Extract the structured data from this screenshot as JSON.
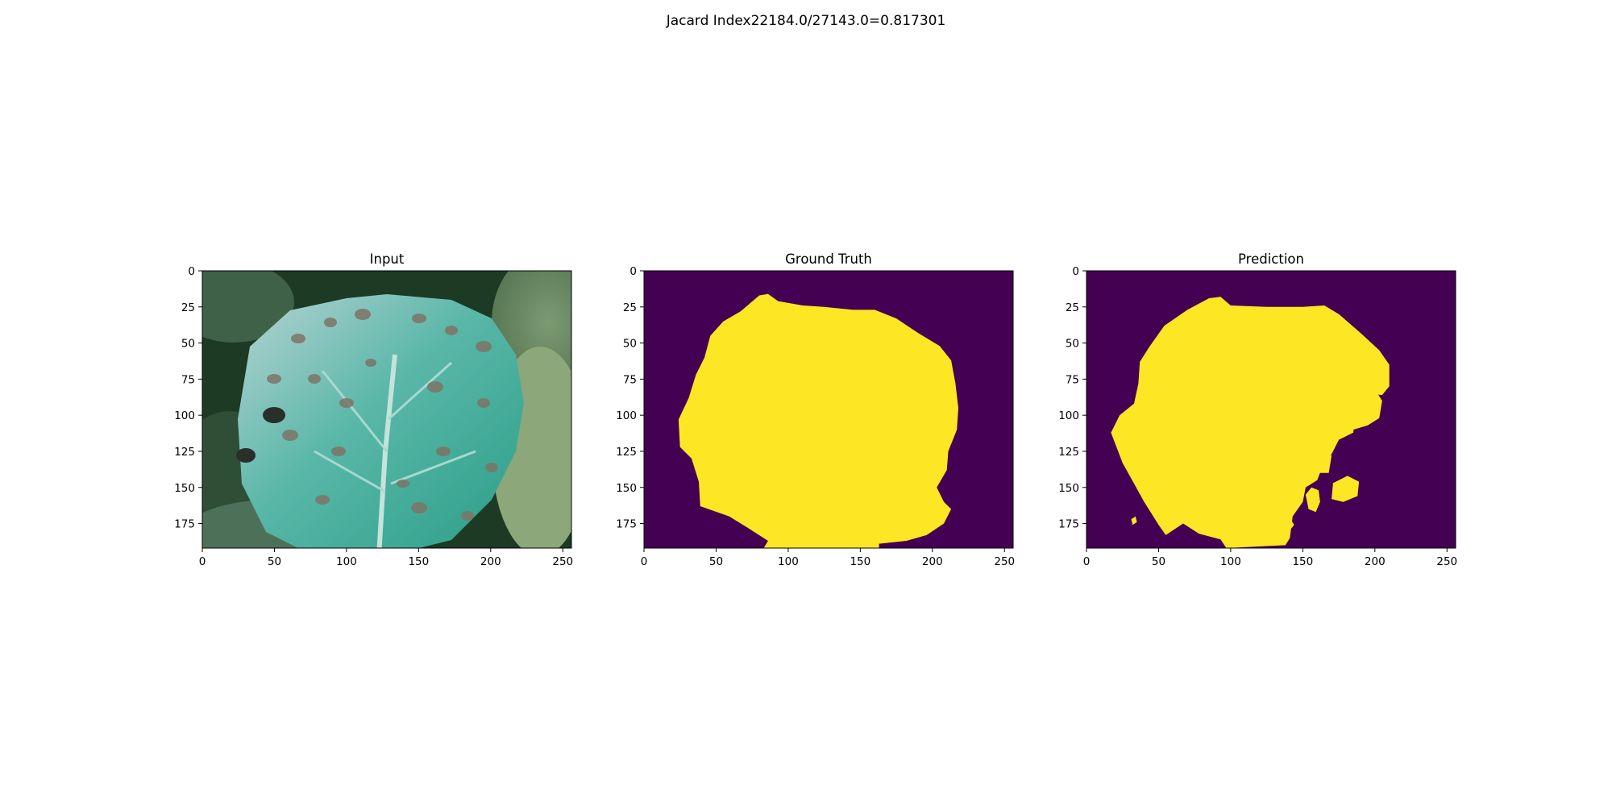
{
  "figure": {
    "title": "Jacard Index22184.0/27143.0=0.817301"
  },
  "colors": {
    "mask_background": "#440154",
    "mask_foreground": "#fde725",
    "axis": "#000000"
  },
  "chart_data": [
    {
      "type": "heatmap",
      "title": "Input",
      "content": "photo of a diseased cabbage leaf (pale blue-green leaf with brown spots on dark green foliage)",
      "xlim": [
        0,
        256
      ],
      "ylim": [
        192,
        0
      ],
      "x_ticks": [
        0,
        50,
        100,
        150,
        200,
        250
      ],
      "y_ticks": [
        0,
        25,
        50,
        75,
        100,
        125,
        150,
        175
      ]
    },
    {
      "type": "heatmap",
      "title": "Ground Truth",
      "content": "binary segmentation mask",
      "xlim": [
        0,
        256
      ],
      "ylim": [
        192,
        0
      ],
      "x_ticks": [
        0,
        50,
        100,
        150,
        200,
        250
      ],
      "y_ticks": [
        0,
        25,
        50,
        75,
        100,
        125,
        150,
        175
      ],
      "mask_outline": [
        [
          80,
          17
        ],
        [
          86,
          16
        ],
        [
          93,
          21
        ],
        [
          110,
          24
        ],
        [
          125,
          25
        ],
        [
          145,
          27
        ],
        [
          160,
          27
        ],
        [
          175,
          33
        ],
        [
          190,
          43
        ],
        [
          205,
          52
        ],
        [
          213,
          62
        ],
        [
          216,
          78
        ],
        [
          218,
          95
        ],
        [
          217,
          110
        ],
        [
          211,
          125
        ],
        [
          210,
          138
        ],
        [
          203,
          150
        ],
        [
          208,
          160
        ],
        [
          213,
          165
        ],
        [
          208,
          175
        ],
        [
          196,
          183
        ],
        [
          182,
          187
        ],
        [
          163,
          189
        ],
        [
          163,
          192
        ],
        [
          83,
          192
        ],
        [
          86,
          187
        ],
        [
          72,
          178
        ],
        [
          59,
          170
        ],
        [
          39,
          163
        ],
        [
          38,
          146
        ],
        [
          33,
          130
        ],
        [
          25,
          122
        ],
        [
          24,
          103
        ],
        [
          31,
          88
        ],
        [
          36,
          72
        ],
        [
          42,
          60
        ],
        [
          46,
          45
        ],
        [
          55,
          35
        ],
        [
          67,
          28
        ]
      ]
    },
    {
      "type": "heatmap",
      "title": "Prediction",
      "content": "binary segmentation mask",
      "xlim": [
        0,
        256
      ],
      "ylim": [
        192,
        0
      ],
      "x_ticks": [
        0,
        50,
        100,
        150,
        200,
        250
      ],
      "y_ticks": [
        0,
        25,
        50,
        75,
        100,
        125,
        150,
        175
      ],
      "mask_outline": [
        [
          85,
          19
        ],
        [
          93,
          18
        ],
        [
          100,
          24
        ],
        [
          125,
          25
        ],
        [
          150,
          25
        ],
        [
          165,
          24
        ],
        [
          175,
          30
        ],
        [
          190,
          43
        ],
        [
          203,
          55
        ],
        [
          210,
          65
        ],
        [
          210,
          80
        ],
        [
          205,
          86
        ],
        [
          195,
          85
        ],
        [
          190,
          91
        ],
        [
          186,
          102
        ],
        [
          185,
          112
        ],
        [
          175,
          117
        ],
        [
          170,
          127
        ],
        [
          165,
          132
        ],
        [
          160,
          145
        ],
        [
          152,
          150
        ],
        [
          150,
          160
        ],
        [
          143,
          170
        ],
        [
          141,
          185
        ],
        [
          138,
          190
        ],
        [
          97,
          192
        ],
        [
          93,
          186
        ],
        [
          78,
          182
        ],
        [
          67,
          175
        ],
        [
          55,
          183
        ],
        [
          50,
          176
        ],
        [
          40,
          160
        ],
        [
          25,
          133
        ],
        [
          17,
          112
        ],
        [
          23,
          100
        ],
        [
          33,
          92
        ],
        [
          36,
          78
        ],
        [
          37,
          63
        ],
        [
          44,
          52
        ],
        [
          54,
          38
        ],
        [
          70,
          27
        ]
      ],
      "mask_blobs": [
        [
          [
            175,
            85
          ],
          [
            188,
            80
          ],
          [
            200,
            82
          ],
          [
            205,
            90
          ],
          [
            203,
            102
          ],
          [
            195,
            107
          ],
          [
            185,
            110
          ],
          [
            172,
            108
          ],
          [
            165,
            103
          ],
          [
            172,
            95
          ]
        ],
        [
          [
            157,
            130
          ],
          [
            163,
            125
          ],
          [
            170,
            128
          ],
          [
            168,
            140
          ],
          [
            158,
            140
          ]
        ],
        [
          [
            171,
            147
          ],
          [
            181,
            142
          ],
          [
            189,
            146
          ],
          [
            188,
            156
          ],
          [
            178,
            160
          ],
          [
            170,
            158
          ]
        ],
        [
          [
            152,
            155
          ],
          [
            156,
            150
          ],
          [
            161,
            152
          ],
          [
            162,
            160
          ],
          [
            159,
            167
          ],
          [
            154,
            165
          ]
        ],
        [
          [
            136,
            174
          ],
          [
            141,
            171
          ],
          [
            144,
            176
          ],
          [
            140,
            181
          ],
          [
            135,
            180
          ]
        ],
        [
          [
            31,
            172
          ],
          [
            34,
            170
          ],
          [
            35,
            174
          ],
          [
            32,
            176
          ]
        ]
      ]
    }
  ]
}
